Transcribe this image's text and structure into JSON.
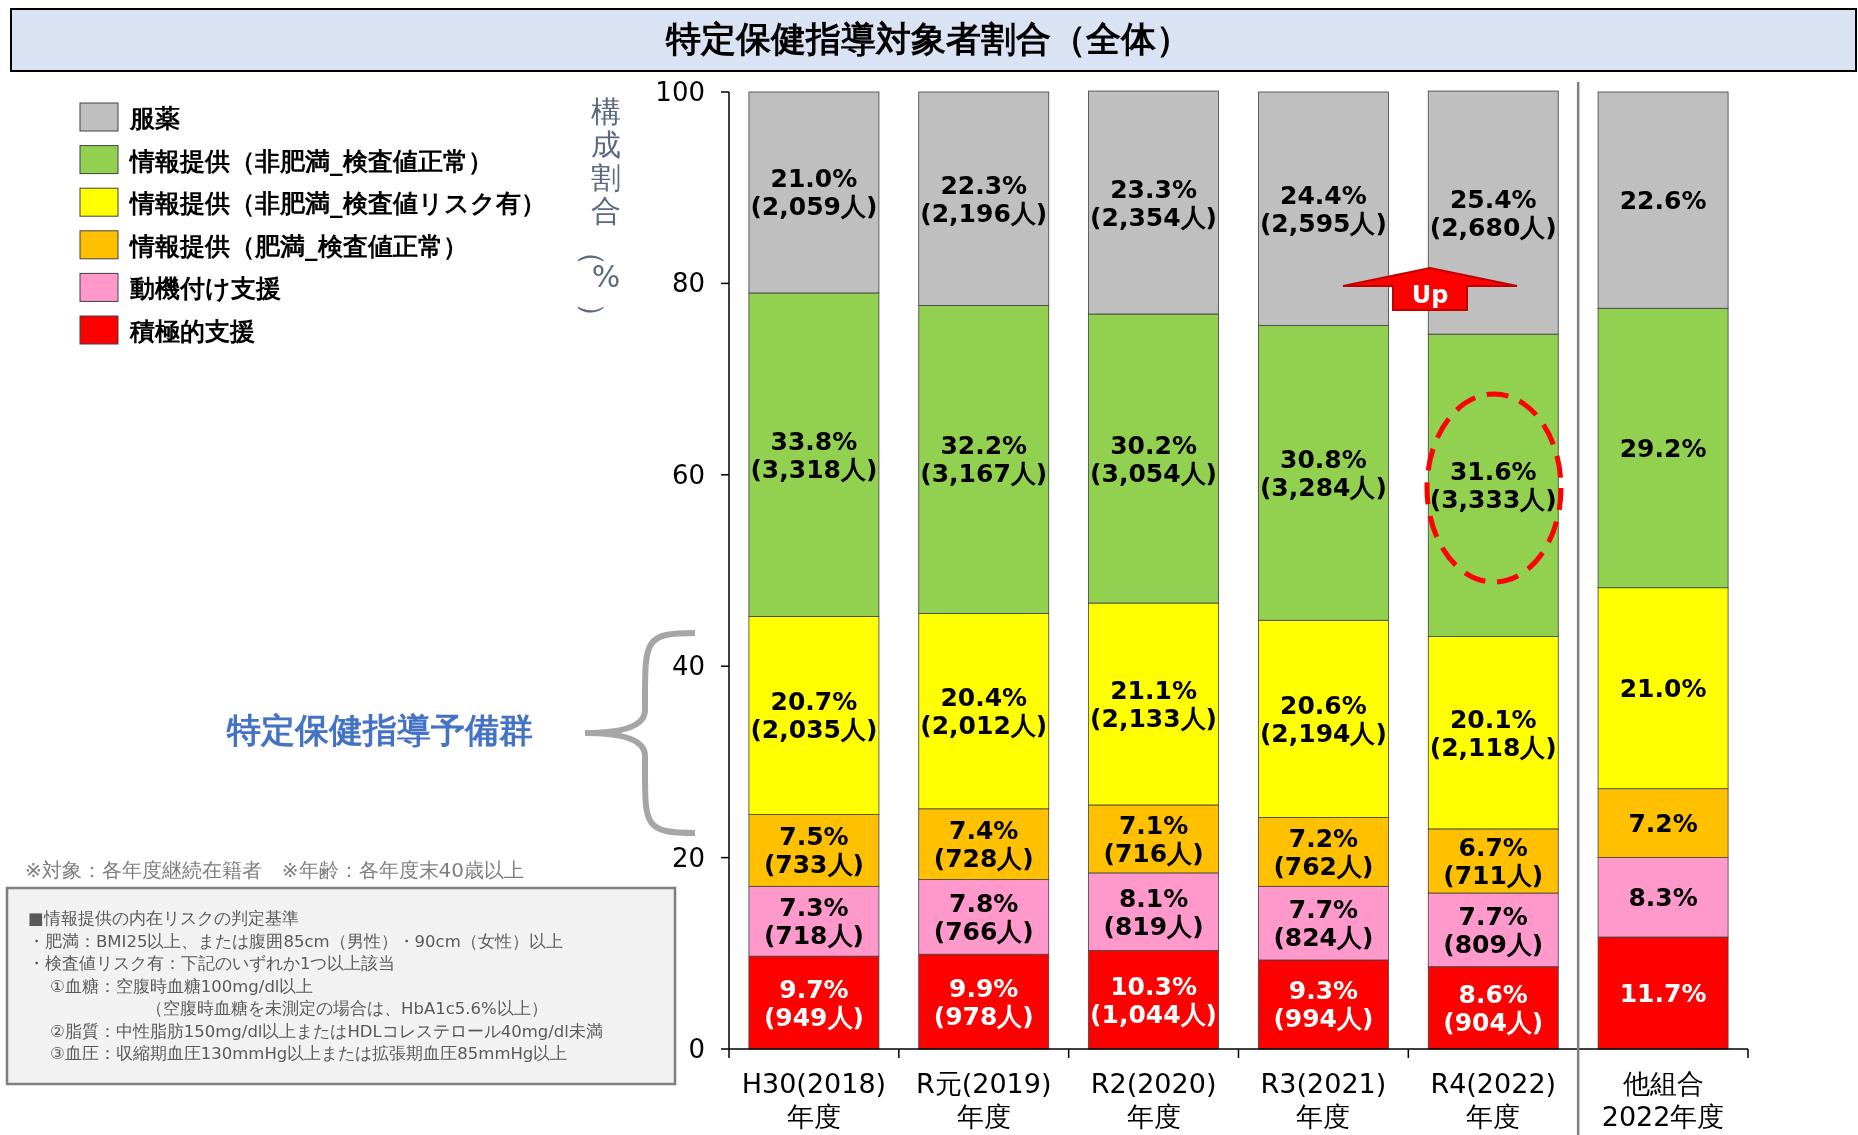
{
  "chart_data": {
    "type": "bar",
    "stacked": true,
    "title": "特定保健指導対象者割合（全体）",
    "ylabel": "構成割合（%）",
    "categories": [
      "H30(2018)\n年度",
      "R元(2019)\n年度",
      "R2(2020)\n年度",
      "R3(2021)\n年度",
      "R4(2022)\n年度",
      "他組合\n2022年度"
    ],
    "series": [
      {
        "name": "積極的支援",
        "color": "#ff0000",
        "values": [
          9.7,
          9.9,
          10.3,
          9.3,
          8.6,
          11.7
        ],
        "value_labels": [
          "9.7%\n(949人)",
          "9.9%\n(978人)",
          "10.3%\n(1,044人)",
          "9.3%\n(994人)",
          "8.6%\n(904人)",
          "11.7%"
        ]
      },
      {
        "name": "動機付け支援",
        "color": "#ff99cc",
        "values": [
          7.3,
          7.8,
          8.1,
          7.7,
          7.7,
          8.3
        ],
        "value_labels": [
          "7.3%\n(718人)",
          "7.8%\n(766人)",
          "8.1%\n(819人)",
          "7.7%\n(824人)",
          "7.7%\n(809人)",
          "8.3%"
        ]
      },
      {
        "name": "情報提供（肥満_検査値正常）",
        "color": "#ffc000",
        "values": [
          7.5,
          7.4,
          7.1,
          7.2,
          6.7,
          7.2
        ],
        "value_labels": [
          "7.5%\n(733人)",
          "7.4%\n(728人)",
          "7.1%\n(716人)",
          "7.2%\n(762人)",
          "6.7%\n(711人)",
          "7.2%"
        ]
      },
      {
        "name": "情報提供（非肥満_検査値リスク有）",
        "color": "#ffff00",
        "values": [
          20.7,
          20.4,
          21.1,
          20.6,
          20.1,
          21.0
        ],
        "value_labels": [
          "20.7%\n(2,035人)",
          "20.4%\n(2,012人)",
          "21.1%\n(2,133人)",
          "20.6%\n(2,194人)",
          "20.1%\n(2,118人)",
          "21.0%"
        ]
      },
      {
        "name": "情報提供（非肥満_検査値正常）",
        "color": "#92d050",
        "values": [
          33.8,
          32.2,
          30.2,
          30.8,
          31.6,
          29.2
        ],
        "value_labels": [
          "33.8%\n(3,318人)",
          "32.2%\n(3,167人)",
          "30.2%\n(3,054人)",
          "30.8%\n(3,284人)",
          "31.6%\n(3,333人)",
          "29.2%"
        ]
      },
      {
        "name": "服薬",
        "color": "#bfbfbf",
        "values": [
          21.0,
          22.3,
          23.3,
          24.4,
          25.4,
          22.6
        ],
        "value_labels": [
          "21.0%\n(2,059人)",
          "22.3%\n(2,196人)",
          "23.3%\n(2,354人)",
          "24.4%\n(2,595人)",
          "25.4%\n(2,680人)",
          "22.6%"
        ]
      }
    ],
    "ylim": [
      0,
      100
    ],
    "yticks": [
      0,
      20,
      40,
      60,
      80,
      100
    ],
    "legend": "left",
    "annotations": [
      "特定保健指導予備群",
      "※対象：各年度継続在籍者　※年齢：各年度末40歳以上",
      "■情報提供の内在リスクの判定基準",
      "・肥満：BMI25以上、または腹囲85cm（男性）・90cm（女性）以上",
      "・検査値リスク有：下記のいずれか1つ以上該当",
      "①血糖：空腹時血糖100mg/dl以上",
      "（空腹時血糖を未測定の場合は、HbA1c5.6%以上）",
      "②脂質：中性脂肪150mg/dl以上またはHDLコレステロール40mg/dl未満",
      "③血圧：収縮期血圧130mmHg以上または拡張期血圧85mmHg以上",
      "Up"
    ]
  }
}
